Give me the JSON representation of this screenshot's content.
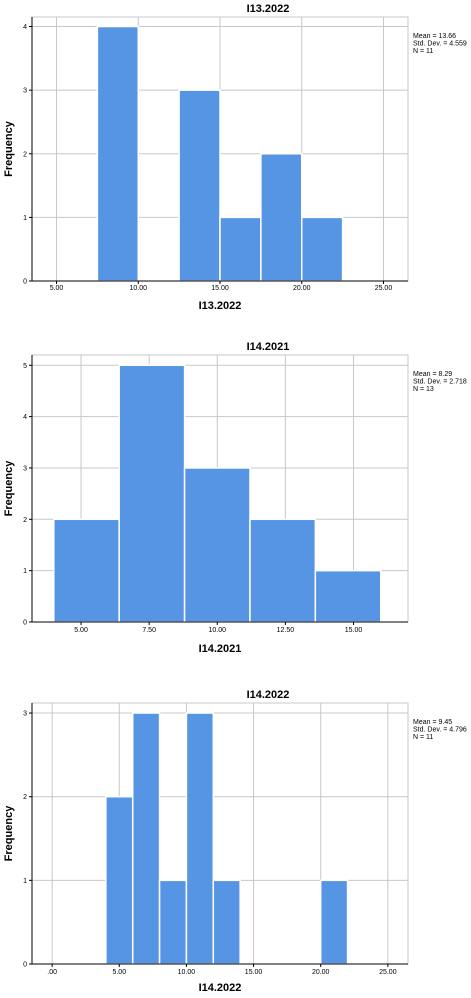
{
  "chart_data": [
    {
      "type": "bar",
      "title": "I13.2022",
      "xlabel": "I13.2022",
      "ylabel": "Frequency",
      "xlim": [
        3.5,
        26.5
      ],
      "ylim": [
        0,
        4.15
      ],
      "xticks": [
        5,
        10,
        15,
        20,
        25
      ],
      "xtick_labels": [
        "5.00",
        "10.00",
        "15.00",
        "20.00",
        "25.00"
      ],
      "yticks": [
        0,
        1,
        2,
        3,
        4
      ],
      "ytick_labels": [
        "0",
        "1",
        "2",
        "3",
        "4"
      ],
      "bars": [
        {
          "start": 7.5,
          "end": 10,
          "value": 4
        },
        {
          "start": 12.5,
          "end": 15,
          "value": 3
        },
        {
          "start": 15,
          "end": 17.5,
          "value": 1
        },
        {
          "start": 17.5,
          "end": 20,
          "value": 2
        },
        {
          "start": 20,
          "end": 22.5,
          "value": 1
        }
      ],
      "stats": {
        "mean": "Mean = 13.66",
        "sd": "Std. Dev. = 4.559",
        "n": "N = 11"
      },
      "grid": true,
      "color": "#5694e4"
    },
    {
      "type": "bar",
      "title": "I14.2021",
      "xlabel": "I14.2021",
      "ylabel": "Frequency",
      "xlim": [
        3.2,
        17.0
      ],
      "ylim": [
        0,
        5.2
      ],
      "xticks": [
        5,
        7.5,
        10,
        12.5,
        15
      ],
      "xtick_labels": [
        "5.00",
        "7.50",
        "10.00",
        "12.50",
        "15.00"
      ],
      "yticks": [
        0,
        1,
        2,
        3,
        4,
        5
      ],
      "ytick_labels": [
        "0",
        "1",
        "2",
        "3",
        "4",
        "5"
      ],
      "bars": [
        {
          "start": 4,
          "end": 6.4,
          "value": 2
        },
        {
          "start": 6.4,
          "end": 8.8,
          "value": 5
        },
        {
          "start": 8.8,
          "end": 11.2,
          "value": 3
        },
        {
          "start": 11.2,
          "end": 13.6,
          "value": 2
        },
        {
          "start": 13.6,
          "end": 16,
          "value": 1
        }
      ],
      "stats": {
        "mean": "Mean = 8.29",
        "sd": "Std. Dev. = 2.718",
        "n": "N = 13"
      },
      "grid": true,
      "color": "#5694e4"
    },
    {
      "type": "bar",
      "title": "I14.2022",
      "xlabel": "I14.2022",
      "ylabel": "Frequency",
      "xlim": [
        -1.5,
        26.5
      ],
      "ylim": [
        0,
        3.12
      ],
      "xticks": [
        0,
        5,
        10,
        15,
        20,
        25
      ],
      "xtick_labels": [
        ".00",
        "5.00",
        "10.00",
        "15.00",
        "20.00",
        "25.00"
      ],
      "yticks": [
        0,
        1,
        2,
        3
      ],
      "ytick_labels": [
        "0",
        "1",
        "2",
        "3"
      ],
      "bars": [
        {
          "start": 4,
          "end": 6,
          "value": 2
        },
        {
          "start": 6,
          "end": 8,
          "value": 3
        },
        {
          "start": 8,
          "end": 10,
          "value": 1
        },
        {
          "start": 10,
          "end": 12,
          "value": 3
        },
        {
          "start": 12,
          "end": 14,
          "value": 1
        },
        {
          "start": 20,
          "end": 22,
          "value": 1
        }
      ],
      "stats": {
        "mean": "Mean = 9.45",
        "sd": "Std. Dev. = 4.796",
        "n": "N = 11"
      },
      "grid": true,
      "color": "#5694e4"
    }
  ]
}
